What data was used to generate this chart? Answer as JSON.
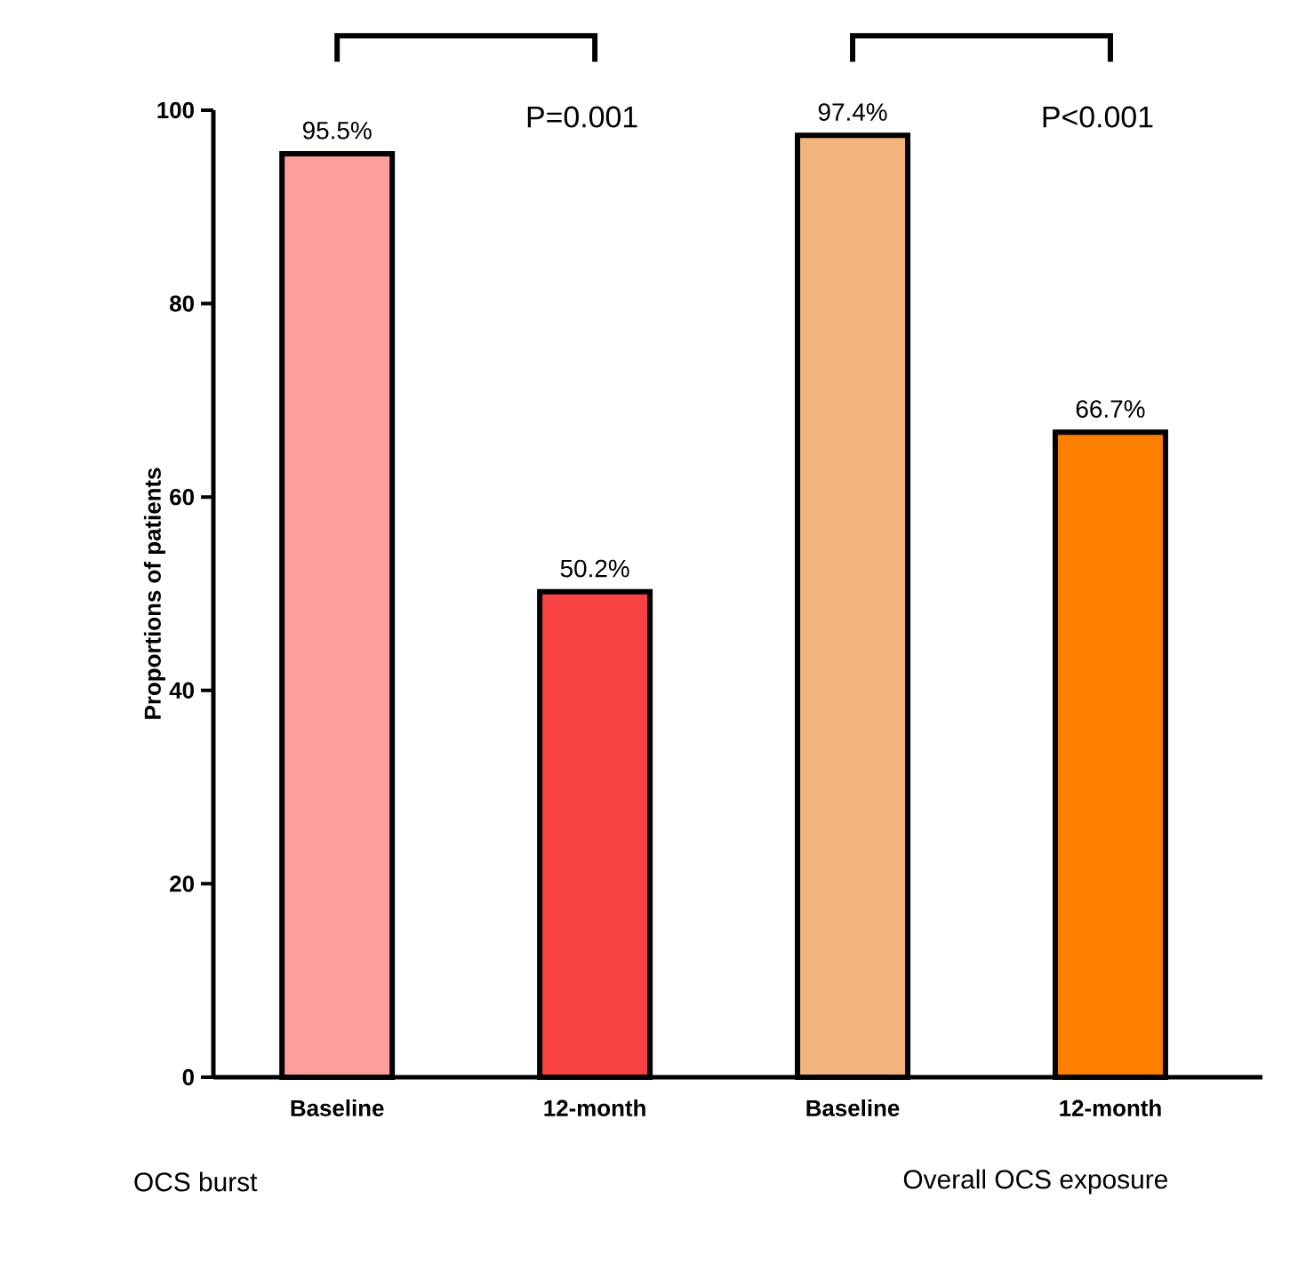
{
  "chart_data": {
    "type": "bar",
    "categories": [
      "Baseline",
      "12-month",
      "Baseline",
      "12-month"
    ],
    "values": [
      95.5,
      50.2,
      97.4,
      66.7
    ],
    "colors": [
      "#fc9e9e",
      "#f94242",
      "#f0b47c",
      "#fd7f00"
    ],
    "value_labels": [
      "95.5%",
      "50.2%",
      "97.4%",
      "66.7%"
    ],
    "ylabel": "Proportions of patients",
    "ylim": [
      0,
      100
    ],
    "yticks": [
      0,
      20,
      40,
      60,
      80,
      100
    ],
    "annotations": [
      "P=0.001",
      "P<0.001",
      "OCS burst",
      "Overall OCS exposure"
    ],
    "grid": false
  }
}
